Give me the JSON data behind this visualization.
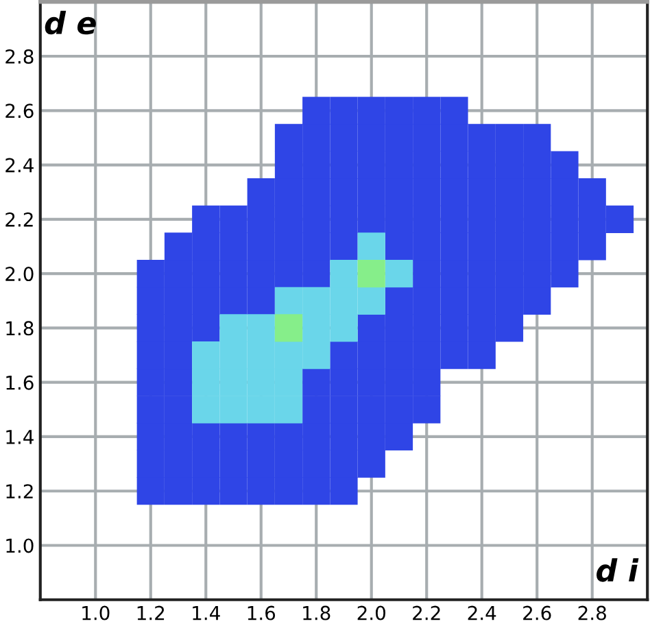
{
  "chart_data": {
    "type": "scatter",
    "xlabel": "d i",
    "ylabel": "d e",
    "xlim": [
      0.8,
      3.0
    ],
    "ylim": [
      0.8,
      3.0
    ],
    "xticks": [
      {
        "value": 1.0,
        "label": "1.0"
      },
      {
        "value": 1.2,
        "label": "1.2"
      },
      {
        "value": 1.4,
        "label": "1.4"
      },
      {
        "value": 1.6,
        "label": "1.6"
      },
      {
        "value": 1.8,
        "label": "1.8"
      },
      {
        "value": 2.0,
        "label": "2.0"
      },
      {
        "value": 2.2,
        "label": "2.2"
      },
      {
        "value": 2.4,
        "label": "2.4"
      },
      {
        "value": 2.6,
        "label": "2.6"
      },
      {
        "value": 2.8,
        "label": "2.8"
      }
    ],
    "yticks": [
      {
        "value": 1.0,
        "label": "1.0"
      },
      {
        "value": 1.2,
        "label": "1.2"
      },
      {
        "value": 1.4,
        "label": "1.4"
      },
      {
        "value": 1.6,
        "label": "1.6"
      },
      {
        "value": 1.8,
        "label": "1.8"
      },
      {
        "value": 2.0,
        "label": "2.0"
      },
      {
        "value": 2.2,
        "label": "2.2"
      },
      {
        "value": 2.4,
        "label": "2.4"
      },
      {
        "value": 2.6,
        "label": "2.6"
      },
      {
        "value": 2.8,
        "label": "2.8"
      }
    ],
    "grid": true,
    "marker": "square",
    "series": [
      {
        "color": "#2f45e6",
        "x": [
          1.2,
          1.3,
          1.4,
          1.5,
          1.6,
          1.7,
          1.8,
          1.9,
          1.2,
          1.3,
          1.4,
          1.5,
          1.6,
          1.7,
          1.8,
          1.9,
          2.0,
          1.2,
          1.3,
          1.4,
          1.5,
          1.6,
          1.7,
          1.8,
          1.9,
          2.0,
          2.1,
          1.2,
          1.3,
          1.8,
          1.9,
          2.0,
          2.1,
          2.2,
          1.2,
          1.3,
          1.8,
          1.9,
          2.0,
          2.1,
          2.2,
          1.2,
          1.3,
          1.9,
          2.0,
          2.1,
          2.2,
          2.3,
          2.4,
          1.2,
          1.3,
          1.4,
          2.0,
          2.1,
          2.2,
          2.3,
          2.4,
          2.5,
          1.2,
          1.3,
          1.4,
          1.5,
          1.6,
          2.1,
          2.2,
          2.3,
          2.4,
          2.5,
          2.6,
          1.2,
          1.3,
          1.4,
          1.5,
          1.6,
          1.7,
          1.8,
          2.2,
          2.3,
          2.4,
          2.5,
          2.6,
          2.7,
          1.3,
          1.4,
          1.5,
          1.6,
          1.7,
          1.8,
          1.9,
          2.1,
          2.2,
          2.3,
          2.4,
          2.5,
          2.6,
          2.7,
          2.8,
          1.4,
          1.5,
          1.6,
          1.7,
          1.8,
          1.9,
          2.0,
          2.1,
          2.2,
          2.3,
          2.4,
          2.5,
          2.6,
          2.7,
          2.8,
          2.9,
          1.6,
          1.7,
          1.8,
          1.9,
          2.0,
          2.1,
          2.2,
          2.3,
          2.4,
          2.5,
          2.6,
          2.7,
          2.8,
          1.7,
          1.8,
          1.9,
          2.0,
          2.1,
          2.2,
          2.3,
          2.4,
          2.5,
          2.6,
          2.7,
          1.7,
          1.8,
          1.9,
          2.0,
          2.1,
          2.2,
          2.3,
          2.4,
          2.5,
          2.6,
          1.8,
          1.9,
          2.0,
          2.1,
          2.2,
          2.3
        ],
        "values": [
          1.2,
          1.2,
          1.2,
          1.2,
          1.2,
          1.2,
          1.2,
          1.2,
          1.3,
          1.3,
          1.3,
          1.3,
          1.3,
          1.3,
          1.3,
          1.3,
          1.3,
          1.4,
          1.4,
          1.4,
          1.4,
          1.4,
          1.4,
          1.4,
          1.4,
          1.4,
          1.4,
          1.5,
          1.5,
          1.5,
          1.5,
          1.5,
          1.5,
          1.5,
          1.6,
          1.6,
          1.6,
          1.6,
          1.6,
          1.6,
          1.6,
          1.7,
          1.7,
          1.7,
          1.7,
          1.7,
          1.7,
          1.7,
          1.7,
          1.8,
          1.8,
          1.8,
          1.8,
          1.8,
          1.8,
          1.8,
          1.8,
          1.8,
          1.9,
          1.9,
          1.9,
          1.9,
          1.9,
          1.9,
          1.9,
          1.9,
          1.9,
          1.9,
          1.9,
          2.0,
          2.0,
          2.0,
          2.0,
          2.0,
          2.0,
          2.0,
          2.0,
          2.0,
          2.0,
          2.0,
          2.0,
          2.0,
          2.1,
          2.1,
          2.1,
          2.1,
          2.1,
          2.1,
          2.1,
          2.1,
          2.1,
          2.1,
          2.1,
          2.1,
          2.1,
          2.1,
          2.1,
          2.2,
          2.2,
          2.2,
          2.2,
          2.2,
          2.2,
          2.2,
          2.2,
          2.2,
          2.2,
          2.2,
          2.2,
          2.2,
          2.2,
          2.2,
          2.2,
          2.3,
          2.3,
          2.3,
          2.3,
          2.3,
          2.3,
          2.3,
          2.3,
          2.3,
          2.3,
          2.3,
          2.3,
          2.3,
          2.4,
          2.4,
          2.4,
          2.4,
          2.4,
          2.4,
          2.4,
          2.4,
          2.4,
          2.4,
          2.4,
          2.5,
          2.5,
          2.5,
          2.5,
          2.5,
          2.5,
          2.5,
          2.5,
          2.5,
          2.5,
          2.6,
          2.6,
          2.6,
          2.6,
          2.6,
          2.6
        ]
      },
      {
        "color": "#6ad6ea",
        "x": [
          1.4,
          1.5,
          1.6,
          1.7,
          1.4,
          1.5,
          1.6,
          1.7,
          1.4,
          1.5,
          1.6,
          1.7,
          1.8,
          1.5,
          1.6,
          1.8,
          1.9,
          1.7,
          1.8,
          1.9,
          2.0,
          1.9,
          2.1,
          2.0
        ],
        "values": [
          1.5,
          1.5,
          1.5,
          1.5,
          1.6,
          1.6,
          1.6,
          1.6,
          1.7,
          1.7,
          1.7,
          1.7,
          1.7,
          1.8,
          1.8,
          1.8,
          1.8,
          1.9,
          1.9,
          1.9,
          1.9,
          2.0,
          2.0,
          2.1
        ]
      },
      {
        "color": "#86ee8a",
        "x": [
          1.7,
          2.0
        ],
        "values": [
          1.8,
          2.0
        ]
      }
    ]
  }
}
